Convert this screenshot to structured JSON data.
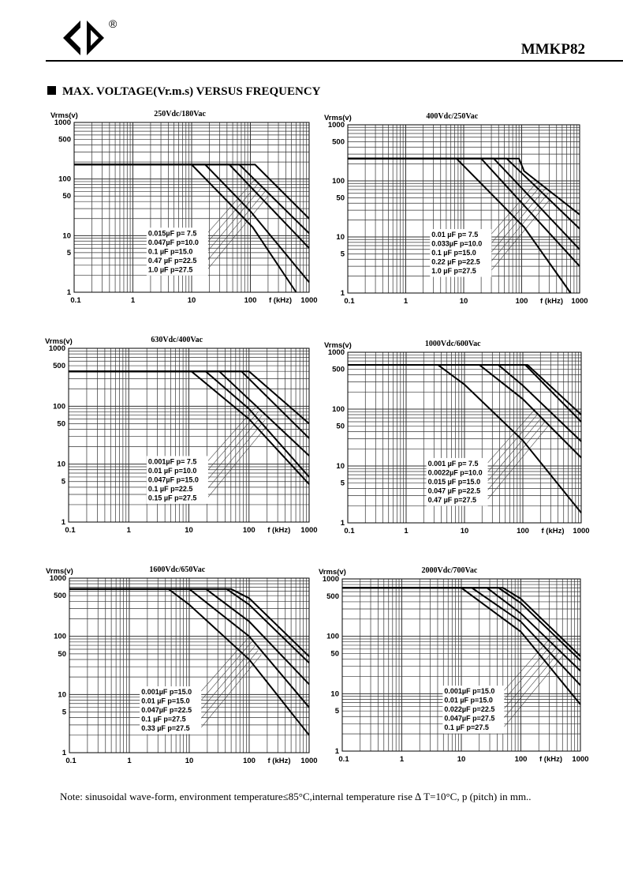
{
  "header": {
    "logo": "GD-logo-icon",
    "registered_mark": "®",
    "model": "MMKP82"
  },
  "section": {
    "title": "MAX. VOLTAGE(Vr.m.s) VERSUS FREQUENCY"
  },
  "note": "Note: sinusoidal wave-form, environment temperature≤85°C,internal temperature rise ∆ T=10°C, p (pitch) in mm..",
  "chart_data": [
    {
      "type": "line",
      "title": "250Vdc/180Vac",
      "ylabel": "Vrms(v)",
      "xlabel": "f (kHz)",
      "xscale": "log",
      "yscale": "log",
      "xlim": [
        0.1,
        1000
      ],
      "ylim": [
        1,
        1000
      ],
      "xticks": [
        "0.1",
        "1",
        "10",
        "100",
        "1000"
      ],
      "yticks": [
        "1",
        "5",
        "10",
        "50",
        "100",
        "500",
        "1000"
      ],
      "grid": true,
      "legend": [
        "0.015µF  p= 7.5",
        "0.047µF  p=10.0",
        "0.1    µF  p=15.0",
        "0.47  µF  p=22.5",
        "1.0    µF  p=27.5"
      ],
      "legend_box": [
        0.57,
        0.62
      ],
      "series": [
        {
          "name": "0.015µF p=7.5",
          "points": [
            [
              0.1,
              180
            ],
            [
              120,
              180
            ],
            [
              1000,
              20
            ]
          ]
        },
        {
          "name": "0.047µF p=10.0",
          "points": [
            [
              0.1,
              180
            ],
            [
              65,
              180
            ],
            [
              1000,
              11
            ]
          ]
        },
        {
          "name": "0.1µF p=15.0",
          "points": [
            [
              0.1,
              180
            ],
            [
              44,
              180
            ],
            [
              1000,
              6
            ]
          ]
        },
        {
          "name": "0.47µF p=22.5",
          "points": [
            [
              0.1,
              180
            ],
            [
              17,
              180
            ],
            [
              100,
              27
            ],
            [
              1000,
              1.5
            ]
          ]
        },
        {
          "name": "1.0µF p=27.5",
          "points": [
            [
              0.1,
              180
            ],
            [
              10,
              180
            ],
            [
              110,
              14
            ],
            [
              600,
              1
            ]
          ]
        }
      ]
    },
    {
      "type": "line",
      "title": "400Vdc/250Vac",
      "ylabel": "Vrms(v)",
      "xlabel": "f (kHz)",
      "xscale": "log",
      "yscale": "log",
      "xlim": [
        0.1,
        1000
      ],
      "ylim": [
        1,
        1000
      ],
      "xticks": [
        "0.1",
        "1",
        "10",
        "100",
        "1000"
      ],
      "yticks": [
        "1",
        "5",
        "10",
        "50",
        "100",
        "500",
        "1000"
      ],
      "grid": true,
      "legend": [
        "0.01  µF  p= 7.5",
        "0.033µF  p=10.0",
        "0.1    µF  p=15.0",
        "0.22  µF  p=22.5",
        "1.0    µF  p=27.5"
      ],
      "legend_box": [
        0.62,
        0.62
      ],
      "series": [
        {
          "name": "0.01µF p=7.5",
          "points": [
            [
              0.1,
              250
            ],
            [
              90,
              250
            ],
            [
              110,
              150
            ],
            [
              1000,
              25
            ]
          ]
        },
        {
          "name": "0.033µF p=10.0",
          "points": [
            [
              0.1,
              250
            ],
            [
              55,
              250
            ],
            [
              1000,
              14
            ]
          ]
        },
        {
          "name": "0.1µF p=15.0",
          "points": [
            [
              0.1,
              250
            ],
            [
              33,
              250
            ],
            [
              1000,
              6
            ]
          ]
        },
        {
          "name": "0.22µF p=22.5",
          "points": [
            [
              0.1,
              250
            ],
            [
              20,
              250
            ],
            [
              1000,
              3
            ]
          ]
        },
        {
          "name": "1.0µF p=27.5",
          "points": [
            [
              0.1,
              250
            ],
            [
              7.5,
              250
            ],
            [
              110,
              15
            ],
            [
              700,
              1
            ]
          ]
        }
      ]
    },
    {
      "type": "line",
      "title": "630Vdc/400Vac",
      "ylabel": "Vrms(v)",
      "xlabel": "f (kHz)",
      "xscale": "log",
      "yscale": "log",
      "xlim": [
        0.1,
        1000
      ],
      "ylim": [
        1,
        1000
      ],
      "xticks": [
        "0.1",
        "1",
        "10",
        "100",
        "1000"
      ],
      "yticks": [
        "1",
        "5",
        "10",
        "50",
        "100",
        "500",
        "1000"
      ],
      "grid": true,
      "legend": [
        "0.001µF  p= 7.5",
        "0.01  µF  p=10.0",
        "0.047µF  p=15.0",
        "0.1    µF  p=22.5",
        "0.15  µF  p=27.5"
      ],
      "legend_box": [
        0.58,
        0.62
      ],
      "series": [
        {
          "name": "0.001µF p=7.5",
          "points": [
            [
              0.1,
              400
            ],
            [
              100,
              400
            ],
            [
              1000,
              50
            ]
          ]
        },
        {
          "name": "0.01µF p=10.0",
          "points": [
            [
              0.1,
              400
            ],
            [
              75,
              400
            ],
            [
              1000,
              28
            ]
          ]
        },
        {
          "name": "0.047µF p=15.0",
          "points": [
            [
              0.1,
              400
            ],
            [
              32,
              400
            ],
            [
              1000,
              14
            ]
          ]
        },
        {
          "name": "0.1µF p=22.5",
          "points": [
            [
              0.1,
              400
            ],
            [
              19,
              400
            ],
            [
              100,
              90
            ],
            [
              1000,
              6
            ]
          ]
        },
        {
          "name": "0.15µF p=27.5",
          "points": [
            [
              0.1,
              400
            ],
            [
              11,
              400
            ],
            [
              100,
              60
            ],
            [
              1000,
              4.5
            ]
          ]
        }
      ]
    },
    {
      "type": "line",
      "title": "1000Vdc/600Vac",
      "ylabel": "Vrms(v)",
      "xlabel": "f (kHz)",
      "xscale": "log",
      "yscale": "log",
      "xlim": [
        0.1,
        1000
      ],
      "ylim": [
        1,
        1000
      ],
      "xticks": [
        "0.1",
        "1",
        "10",
        "100",
        "1000"
      ],
      "yticks": [
        "1",
        "5",
        "10",
        "50",
        "100",
        "500",
        "1000"
      ],
      "grid": true,
      "legend": [
        "0.001  µF  p= 7.5",
        "0.0022µF  p=10.0",
        "0.015  µF  p=15.0",
        "0.047  µF  p=22.5",
        "0.47    µF  p=27.5"
      ],
      "legend_box": [
        0.6,
        0.62
      ],
      "series": [
        {
          "name": "0.001µF p=7.5",
          "points": [
            [
              0.1,
              600
            ],
            [
              120,
              600
            ],
            [
              1000,
              80
            ]
          ]
        },
        {
          "name": "0.0022µF p=10.0",
          "points": [
            [
              0.1,
              600
            ],
            [
              110,
              600
            ],
            [
              1000,
              60
            ]
          ]
        },
        {
          "name": "0.015µF p=15.0",
          "points": [
            [
              0.1,
              600
            ],
            [
              38,
              600
            ],
            [
              100,
              260
            ],
            [
              1000,
              27
            ]
          ]
        },
        {
          "name": "0.047µF p=22.5",
          "points": [
            [
              0.1,
              600
            ],
            [
              18,
              600
            ],
            [
              100,
              150
            ],
            [
              1000,
              14
            ]
          ]
        },
        {
          "name": "0.47µF p=27.5",
          "points": [
            [
              0.1,
              600
            ],
            [
              3.5,
              600
            ],
            [
              10,
              270
            ],
            [
              100,
              28
            ],
            [
              1000,
              1.5
            ]
          ]
        }
      ]
    },
    {
      "type": "line",
      "title": "1600Vdc/650Vac",
      "ylabel": "Vrms(v)",
      "xlabel": "f (kHz)",
      "xscale": "log",
      "yscale": "log",
      "xlim": [
        0.1,
        1000
      ],
      "ylim": [
        1,
        1000
      ],
      "xticks": [
        "0.1",
        "1",
        "10",
        "100",
        "1000"
      ],
      "yticks": [
        "1",
        "5",
        "10",
        "50",
        "100",
        "500",
        "1000"
      ],
      "grid": true,
      "legend": [
        "0.001µF  p=15.0",
        "0.01  µF  p=15.0",
        "0.047µF  p=22.5",
        "0.1    µF  p=27.5",
        "0.33  µF  p=27.5"
      ],
      "legend_box": [
        0.55,
        0.62
      ],
      "series": [
        {
          "name": "0.001µF p=15.0",
          "points": [
            [
              0.1,
              650
            ],
            [
              50,
              650
            ],
            [
              100,
              450
            ],
            [
              1000,
              45
            ]
          ]
        },
        {
          "name": "0.01µF p=15.0",
          "points": [
            [
              0.1,
              650
            ],
            [
              42,
              650
            ],
            [
              100,
              350
            ],
            [
              1000,
              35
            ]
          ]
        },
        {
          "name": "0.047µF p=22.5",
          "points": [
            [
              0.1,
              650
            ],
            [
              19,
              650
            ],
            [
              100,
              180
            ],
            [
              1000,
              15
            ]
          ]
        },
        {
          "name": "0.1µF p=27.5",
          "points": [
            [
              0.1,
              650
            ],
            [
              10,
              650
            ],
            [
              100,
              100
            ],
            [
              1000,
              6
            ]
          ]
        },
        {
          "name": "0.33µF p=27.5",
          "points": [
            [
              0.1,
              650
            ],
            [
              4.5,
              650
            ],
            [
              10,
              350
            ],
            [
              100,
              40
            ],
            [
              1000,
              2
            ]
          ]
        }
      ]
    },
    {
      "type": "line",
      "title": "2000Vdc/700Vac",
      "ylabel": "Vrms(v)",
      "xlabel": "f (kHz)",
      "xscale": "log",
      "yscale": "log",
      "xlim": [
        0.1,
        1000
      ],
      "ylim": [
        1,
        1000
      ],
      "xticks": [
        "0.1",
        "1",
        "10",
        "100",
        "1000"
      ],
      "yticks": [
        "1",
        "5",
        "10",
        "50",
        "100",
        "500",
        "1000"
      ],
      "grid": true,
      "legend": [
        "0.001µF  p=15.0",
        "0.01  µF  p=15.0",
        "0.022µF  p=22.5",
        "0.047µF  p=27.5",
        "0.1    µF  p=27.5"
      ],
      "legend_box": [
        0.68,
        0.62
      ],
      "series": [
        {
          "name": "0.001µF p=15.0",
          "points": [
            [
              0.1,
              700
            ],
            [
              50,
              700
            ],
            [
              100,
              450
            ],
            [
              1000,
              45
            ]
          ]
        },
        {
          "name": "0.01µF p=15.0",
          "points": [
            [
              0.1,
              700
            ],
            [
              42,
              700
            ],
            [
              100,
              380
            ],
            [
              1000,
              38
            ]
          ]
        },
        {
          "name": "0.022µF p=22.5",
          "points": [
            [
              0.1,
              700
            ],
            [
              27,
              700
            ],
            [
              100,
              250
            ],
            [
              1000,
              25
            ]
          ]
        },
        {
          "name": "0.047µF p=27.5",
          "points": [
            [
              0.1,
              700
            ],
            [
              15,
              700
            ],
            [
              100,
              180
            ],
            [
              1000,
              14
            ]
          ]
        },
        {
          "name": "0.1µF p=27.5",
          "points": [
            [
              0.1,
              700
            ],
            [
              10,
              700
            ],
            [
              100,
              120
            ],
            [
              1000,
              6.5
            ]
          ]
        }
      ]
    }
  ]
}
